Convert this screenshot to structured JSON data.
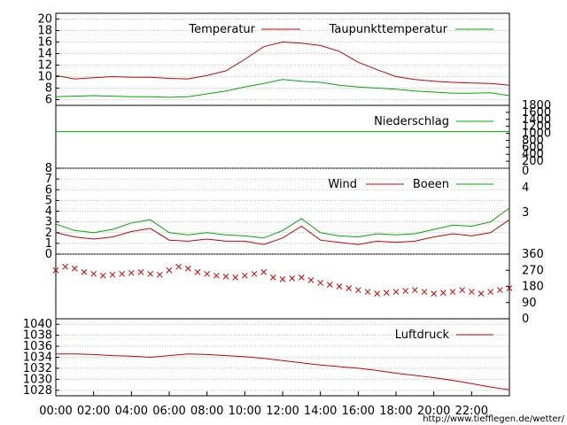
{
  "chart_data": [
    {
      "type": "line",
      "panel": "temperature",
      "series": [
        {
          "name": "Temperatur",
          "color": "#cc0000",
          "x": [
            0,
            1,
            2,
            3,
            4,
            5,
            6,
            7,
            8,
            9,
            10,
            11,
            12,
            13,
            14,
            15,
            16,
            17,
            18,
            19,
            20,
            21,
            22,
            23,
            24
          ],
          "values": [
            10.2,
            9.6,
            9.8,
            10,
            9.9,
            9.9,
            9.7,
            9.6,
            10.2,
            11,
            13,
            15.2,
            16,
            15.8,
            15.4,
            14.4,
            12.5,
            11.2,
            10,
            9.5,
            9.2,
            9,
            8.9,
            8.8,
            8.5
          ]
        },
        {
          "name": "Taupunkttemperatur",
          "color": "#00aa00",
          "x": [
            0,
            1,
            2,
            3,
            4,
            5,
            6,
            7,
            8,
            9,
            10,
            11,
            12,
            13,
            14,
            15,
            16,
            17,
            18,
            19,
            20,
            21,
            22,
            23,
            24
          ],
          "values": [
            6.5,
            6.6,
            6.7,
            6.6,
            6.5,
            6.5,
            6.4,
            6.5,
            7,
            7.5,
            8.2,
            8.8,
            9.5,
            9.2,
            9,
            8.5,
            8.2,
            8,
            7.8,
            7.5,
            7.3,
            7.1,
            7.1,
            7.2,
            6.7
          ]
        }
      ],
      "yticks": [
        "6",
        "8",
        "10",
        "12",
        "14",
        "16",
        "18",
        "20"
      ],
      "ylim": [
        5,
        21
      ],
      "grid": true,
      "legend": "top-right"
    },
    {
      "type": "line",
      "panel": "precipitation",
      "series": [
        {
          "name": "Niederschlag",
          "color": "#00aa00",
          "x": [
            0,
            24
          ],
          "values": [
            1050,
            1050
          ]
        }
      ],
      "yticks": [
        "200",
        "400",
        "600",
        "800",
        "1000",
        "1200",
        "1400",
        "1600",
        "1800"
      ],
      "ylim": [
        0,
        1800
      ],
      "legend": "top-right"
    },
    {
      "type": "line",
      "panel": "wind",
      "series": [
        {
          "name": "Wind",
          "color": "#cc0000",
          "x": [
            0,
            1,
            2,
            3,
            4,
            5,
            6,
            7,
            8,
            9,
            10,
            11,
            12,
            13,
            14,
            15,
            16,
            17,
            18,
            19,
            20,
            21,
            22,
            23,
            24
          ],
          "values": [
            2,
            1.6,
            1.4,
            1.6,
            2.1,
            2.4,
            1.3,
            1.2,
            1.4,
            1.2,
            1.2,
            0.9,
            1.5,
            2.6,
            1.3,
            1.1,
            0.9,
            1.2,
            1.1,
            1.2,
            1.6,
            1.9,
            1.7,
            2,
            3.2
          ]
        },
        {
          "name": "Boeen",
          "color": "#00aa00",
          "x": [
            0,
            1,
            2,
            3,
            4,
            5,
            6,
            7,
            8,
            9,
            10,
            11,
            12,
            13,
            14,
            15,
            16,
            17,
            18,
            19,
            20,
            21,
            22,
            23,
            24
          ],
          "values": [
            2.8,
            2.2,
            2,
            2.3,
            2.9,
            3.2,
            2,
            1.8,
            2,
            1.8,
            1.7,
            1.5,
            2.2,
            3.3,
            2,
            1.7,
            1.6,
            1.9,
            1.8,
            1.9,
            2.3,
            2.7,
            2.6,
            3,
            4.3
          ]
        }
      ],
      "yticks": [
        "0",
        "1",
        "2",
        "3",
        "4",
        "5",
        "6",
        "7",
        "8"
      ],
      "ylim": [
        0,
        8
      ],
      "y2ticks": [
        "0",
        "3",
        "4"
      ],
      "grid": true,
      "legend": "top-right"
    },
    {
      "type": "scatter",
      "panel": "wind-direction",
      "series": [
        {
          "color": "#cc0000",
          "x": [
            0,
            0.5,
            1,
            1.5,
            2,
            2.5,
            3,
            3.5,
            4,
            4.5,
            5,
            5.5,
            6,
            6.5,
            7,
            7.5,
            8,
            8.5,
            9,
            9.5,
            10,
            10.5,
            11,
            11.5,
            12,
            12.5,
            13,
            13.5,
            14,
            14.5,
            15,
            15.5,
            16,
            16.5,
            17,
            17.5,
            18,
            18.5,
            19,
            19.5,
            20,
            20.5,
            21,
            21.5,
            22,
            22.5,
            23,
            23.5,
            24
          ],
          "values": [
            270,
            290,
            280,
            260,
            250,
            240,
            245,
            250,
            255,
            260,
            250,
            245,
            270,
            290,
            280,
            260,
            250,
            240,
            235,
            230,
            240,
            250,
            260,
            230,
            220,
            225,
            230,
            215,
            200,
            190,
            180,
            170,
            160,
            150,
            140,
            145,
            150,
            155,
            160,
            150,
            140,
            145,
            150,
            160,
            150,
            140,
            150,
            160,
            170
          ]
        }
      ],
      "yticks": [
        "0",
        "90",
        "180",
        "270",
        "360"
      ],
      "ylim": [
        0,
        360
      ]
    },
    {
      "type": "line",
      "panel": "pressure",
      "series": [
        {
          "name": "Luftdruck",
          "color": "#cc0000",
          "x": [
            0,
            1,
            2,
            3,
            4,
            5,
            6,
            7,
            8,
            9,
            10,
            11,
            12,
            13,
            14,
            15,
            16,
            17,
            18,
            19,
            20,
            21,
            22,
            23,
            24
          ],
          "values": [
            1034.6,
            1034.6,
            1034.5,
            1034.3,
            1034.2,
            1034,
            1034.3,
            1034.6,
            1034.5,
            1034.3,
            1034.1,
            1033.8,
            1033.4,
            1033,
            1032.6,
            1032.3,
            1032,
            1031.6,
            1031.1,
            1030.7,
            1030.3,
            1029.8,
            1029.2,
            1028.6,
            1028.1
          ]
        }
      ],
      "yticks": [
        "1028",
        "1030",
        "1032",
        "1034",
        "1036",
        "1038",
        "1040"
      ],
      "ylim": [
        1027,
        1041
      ],
      "grid": true,
      "legend": "top-right"
    }
  ],
  "xticks": [
    "00:00",
    "02:00",
    "04:00",
    "06:00",
    "08:00",
    "10:00",
    "12:00",
    "14:00",
    "16:00",
    "18:00",
    "20:00",
    "22:00"
  ],
  "footer_url": "http://www.tiefflegen.de/wetter/"
}
